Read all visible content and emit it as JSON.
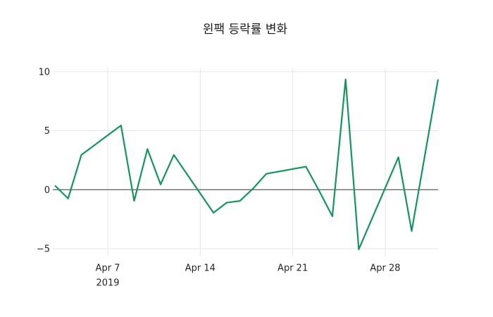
{
  "chart_data": {
    "type": "line",
    "title": "윈팩 등락률 변화",
    "x_dates": [
      "2019-04-03",
      "2019-04-04",
      "2019-04-05",
      "2019-04-08",
      "2019-04-09",
      "2019-04-10",
      "2019-04-11",
      "2019-04-12",
      "2019-04-15",
      "2019-04-16",
      "2019-04-17",
      "2019-04-18",
      "2019-04-19",
      "2019-04-22",
      "2019-04-23",
      "2019-04-24",
      "2019-04-25",
      "2019-04-26",
      "2019-04-29",
      "2019-04-30",
      "2019-05-02"
    ],
    "values": [
      0.35,
      -0.75,
      2.95,
      5.45,
      -0.95,
      3.45,
      0.45,
      2.95,
      -1.95,
      -1.1,
      -0.95,
      0.1,
      1.35,
      1.95,
      -0.1,
      -2.25,
      9.35,
      -5.05,
      2.75,
      -3.5,
      9.35
    ],
    "x_ticks": [
      {
        "label": "Apr 7",
        "year": "2019",
        "date": "2019-04-07"
      },
      {
        "label": "Apr 14",
        "year": "",
        "date": "2019-04-14"
      },
      {
        "label": "Apr 21",
        "year": "",
        "date": "2019-04-21"
      },
      {
        "label": "Apr 28",
        "year": "",
        "date": "2019-04-28"
      }
    ],
    "y_ticks": [
      {
        "label": "10",
        "value": 10
      },
      {
        "label": "5",
        "value": 5
      },
      {
        "label": "0",
        "value": 0
      },
      {
        "label": "−5",
        "value": -5
      }
    ],
    "ylim": [
      -5.7,
      10.4
    ],
    "xlim": [
      "2019-04-02",
      "2019-05-02"
    ],
    "grid": true,
    "legend": false,
    "zero_line": true,
    "colors": {
      "line": "#14965a",
      "grid": "#e6e6e6",
      "zero_line": "#333333",
      "text": "#262626",
      "title_text": "#1a1a1a",
      "background": "#ffffff"
    }
  }
}
